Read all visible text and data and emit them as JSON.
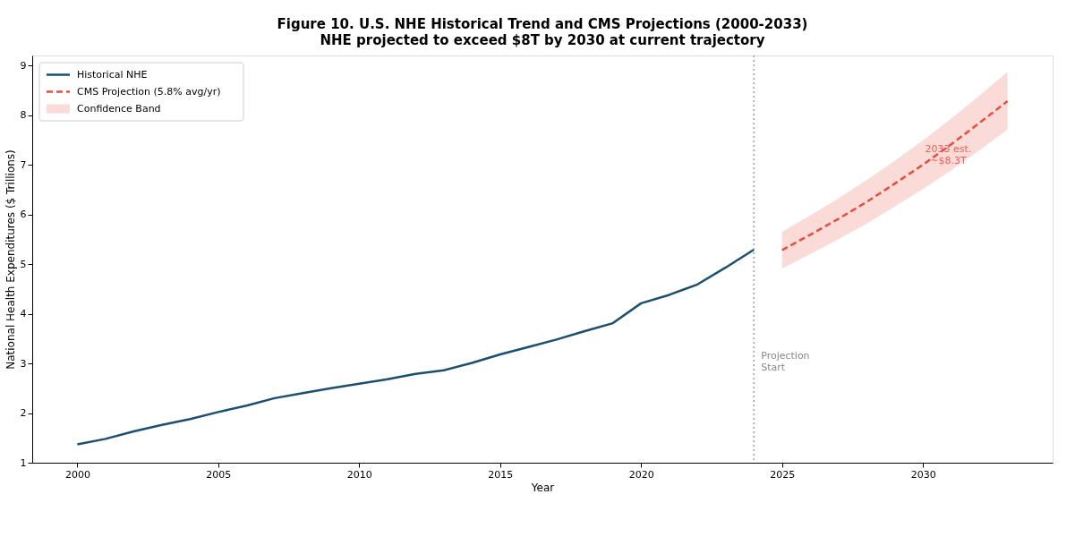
{
  "chart_data": {
    "type": "line",
    "title": "Figure 10. U.S. NHE Historical Trend and CMS Projections (2000-2033)",
    "subtitle": "NHE projected to exceed $8T by 2030 at current trajectory",
    "xlabel": "Year",
    "ylabel": "National Health Expenditures ($ Trillions)",
    "xlim": [
      1998.4,
      2034.6
    ],
    "ylim": [
      1,
      9.2
    ],
    "xticks": [
      2000,
      2005,
      2010,
      2015,
      2020,
      2025,
      2030
    ],
    "yticks": [
      1,
      2,
      3,
      4,
      5,
      6,
      7,
      8,
      9
    ],
    "grid": false,
    "legend": "top left",
    "series": [
      {
        "name": "Historical NHE",
        "color": "#1b4f72",
        "line_style": "solid",
        "x": [
          2000,
          2001,
          2002,
          2003,
          2004,
          2005,
          2006,
          2007,
          2008,
          2009,
          2010,
          2011,
          2012,
          2013,
          2014,
          2015,
          2016,
          2017,
          2018,
          2019,
          2020,
          2021,
          2022,
          2023,
          2024
        ],
        "values": [
          1.37,
          1.48,
          1.63,
          1.76,
          1.88,
          2.02,
          2.15,
          2.3,
          2.4,
          2.5,
          2.59,
          2.68,
          2.79,
          2.86,
          3.01,
          3.18,
          3.33,
          3.48,
          3.65,
          3.81,
          4.21,
          4.38,
          4.59,
          4.93,
          5.29
        ]
      },
      {
        "name": "CMS Projection (5.8% avg/yr)",
        "color": "#e74c3c",
        "line_style": "dashed",
        "x": [
          2025,
          2026,
          2027,
          2028,
          2029,
          2030,
          2031,
          2032,
          2033
        ],
        "values": [
          5.28,
          5.59,
          5.91,
          6.25,
          6.62,
          7.0,
          7.41,
          7.84,
          8.28
        ],
        "lower": [
          4.91,
          5.2,
          5.5,
          5.81,
          6.16,
          6.51,
          6.89,
          7.29,
          7.71
        ],
        "upper": [
          5.65,
          5.98,
          6.32,
          6.69,
          7.08,
          7.49,
          7.93,
          8.39,
          8.87
        ]
      }
    ],
    "ref_lines": [
      {
        "axis": "x",
        "value": 2024,
        "label": "Projection\nStart",
        "color": "#888888",
        "line_style": "dotted"
      }
    ],
    "annotations": [
      "Confidence Band",
      {
        "text": "2033 est.\n~$8.3T",
        "x": 2030.9,
        "y": 7.3
      }
    ]
  }
}
